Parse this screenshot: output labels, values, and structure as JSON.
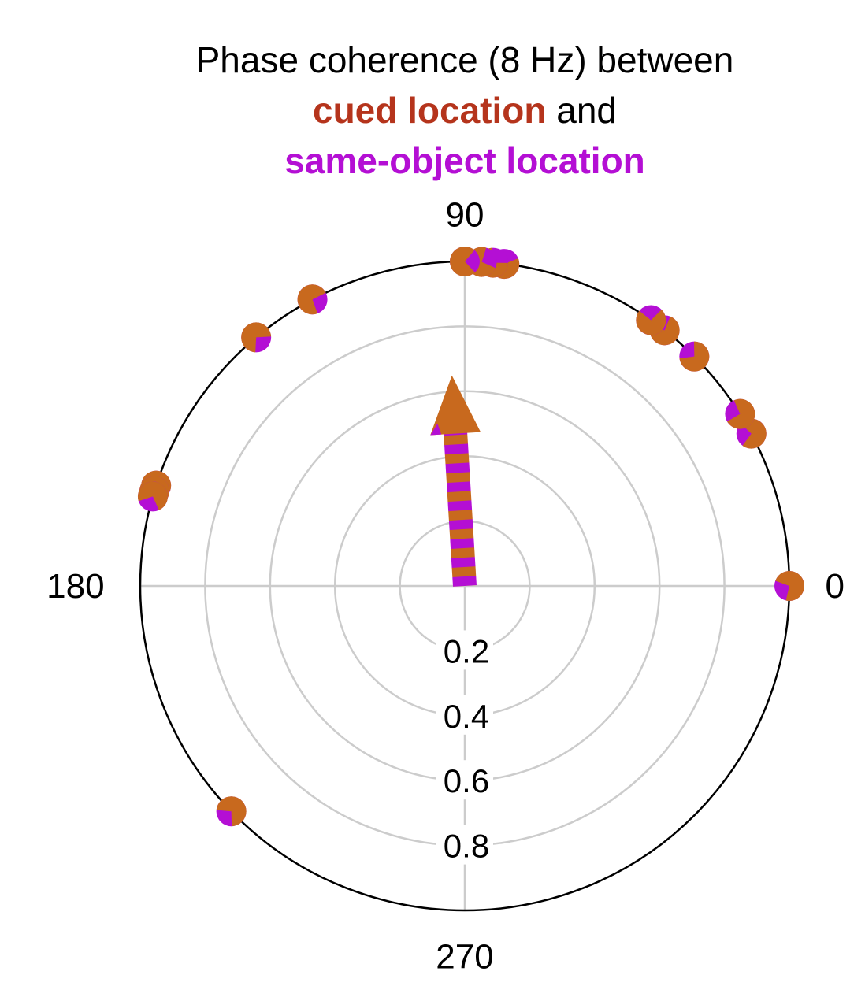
{
  "title": {
    "line1": "Phase coherence (8 Hz) between",
    "cued_text": "cued location",
    "and_text": " and",
    "same_text": "same-object location"
  },
  "colors": {
    "cued": "#c8691e",
    "same_object": "#b40fd4",
    "cued_title": "#b5341c",
    "grid": "#cccccc",
    "outer": "#000000"
  },
  "chart_data": {
    "type": "polar",
    "angle_ticks": [
      {
        "angle": 0,
        "label": "0"
      },
      {
        "angle": 90,
        "label": "90"
      },
      {
        "angle": 180,
        "label": "180"
      },
      {
        "angle": 270,
        "label": "270"
      }
    ],
    "radial_ticks": [
      {
        "r": 0.2,
        "label": "0.2"
      },
      {
        "r": 0.4,
        "label": "0.4"
      },
      {
        "r": 0.6,
        "label": "0.6"
      },
      {
        "r": 0.8,
        "label": "0.8"
      }
    ],
    "rlim": [
      0,
      1
    ],
    "phase_points_deg": [
      0,
      28,
      32,
      45,
      52,
      55,
      83,
      85,
      87,
      90,
      118,
      130,
      162,
      163,
      164,
      224
    ],
    "mean_vector": {
      "angle_deg": 93.5,
      "length": 0.65
    }
  }
}
